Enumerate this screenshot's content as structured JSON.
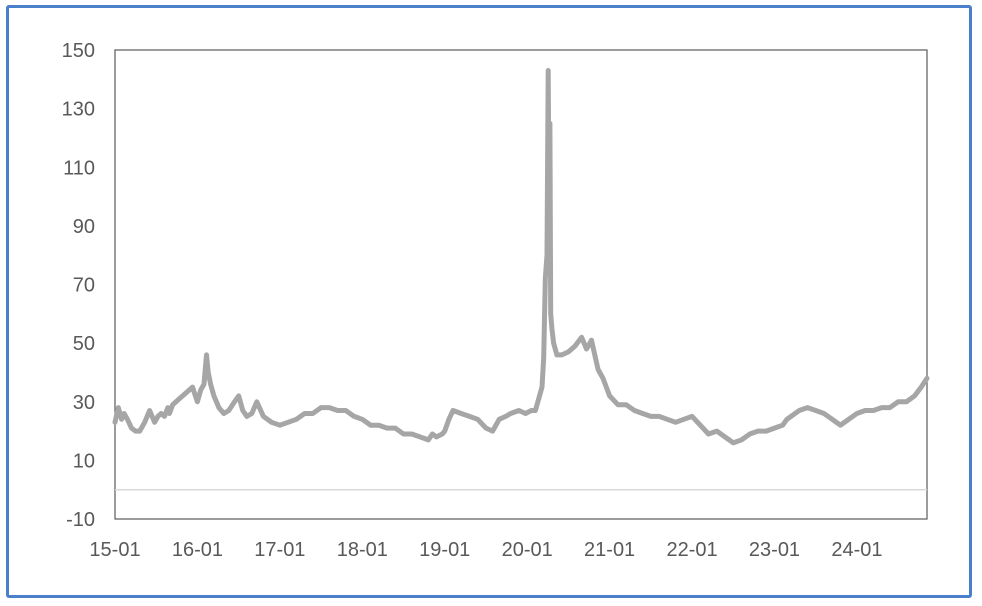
{
  "chart_data": {
    "type": "line",
    "title": "",
    "xlabel": "",
    "ylabel": "",
    "ylim": [
      -10,
      150
    ],
    "yticks": [
      -10,
      10,
      30,
      50,
      70,
      90,
      110,
      130,
      150
    ],
    "xlim": [
      2015.0,
      2024.85
    ],
    "xticks": [
      {
        "label": "15-01",
        "x": 2015.0
      },
      {
        "label": "16-01",
        "x": 2016.0
      },
      {
        "label": "17-01",
        "x": 2017.0
      },
      {
        "label": "18-01",
        "x": 2018.0
      },
      {
        "label": "19-01",
        "x": 2019.0
      },
      {
        "label": "20-01",
        "x": 2020.0
      },
      {
        "label": "21-01",
        "x": 2021.0
      },
      {
        "label": "22-01",
        "x": 2022.0
      },
      {
        "label": "23-01",
        "x": 2023.0
      },
      {
        "label": "24-01",
        "x": 2024.0
      }
    ],
    "grid": false,
    "legend": "none",
    "reference_line": 0,
    "colors": {
      "line": "#a6a6a6",
      "axis": "#595959",
      "zero_line": "#d9d9d9",
      "frame": "#4a7fcb"
    },
    "series": [
      {
        "x": [
          2015.0,
          2015.04,
          2015.08,
          2015.11,
          2015.15,
          2015.2,
          2015.25,
          2015.3,
          2015.36,
          2015.42,
          2015.48,
          2015.52,
          2015.56,
          2015.6,
          2015.64,
          2015.66,
          2015.7,
          2015.78,
          2015.86,
          2015.94,
          2016.0,
          2016.04,
          2016.08,
          2016.11,
          2016.13,
          2016.16,
          2016.2,
          2016.26,
          2016.32,
          2016.38,
          2016.45,
          2016.5,
          2016.55,
          2016.6,
          2016.66,
          2016.72,
          2016.8,
          2016.9,
          2017.0,
          2017.1,
          2017.2,
          2017.3,
          2017.4,
          2017.5,
          2017.6,
          2017.7,
          2017.8,
          2017.9,
          2018.0,
          2018.1,
          2018.2,
          2018.3,
          2018.4,
          2018.5,
          2018.6,
          2018.7,
          2018.8,
          2018.85,
          2018.9,
          2018.97,
          2019.0,
          2019.05,
          2019.1,
          2019.2,
          2019.3,
          2019.4,
          2019.5,
          2019.58,
          2019.66,
          2019.74,
          2019.8,
          2019.9,
          2019.98,
          2020.05,
          2020.1,
          2020.14,
          2020.18,
          2020.2,
          2020.22,
          2020.24,
          2020.255,
          2020.265,
          2020.275,
          2020.285,
          2020.3,
          2020.32,
          2020.36,
          2020.42,
          2020.5,
          2020.58,
          2020.66,
          2020.72,
          2020.78,
          2020.82,
          2020.86,
          2020.92,
          2021.0,
          2021.1,
          2021.2,
          2021.3,
          2021.4,
          2021.5,
          2021.6,
          2021.7,
          2021.8,
          2021.9,
          2022.0,
          2022.1,
          2022.2,
          2022.3,
          2022.4,
          2022.5,
          2022.6,
          2022.7,
          2022.8,
          2022.9,
          2023.0,
          2023.1,
          2023.15,
          2023.2,
          2023.3,
          2023.4,
          2023.5,
          2023.6,
          2023.7,
          2023.8,
          2023.9,
          2024.0,
          2024.1,
          2024.2,
          2024.3,
          2024.4,
          2024.5,
          2024.6,
          2024.7,
          2024.78,
          2024.85
        ],
        "values": [
          23,
          28,
          24,
          26,
          24,
          21,
          20,
          20,
          23,
          27,
          23,
          25,
          26,
          25,
          28,
          26,
          29,
          31,
          33,
          35,
          30,
          34,
          36,
          46,
          40,
          36,
          32,
          28,
          26,
          27,
          30,
          32,
          27,
          25,
          26,
          30,
          25,
          23,
          22,
          23,
          24,
          26,
          26,
          28,
          28,
          27,
          27,
          25,
          24,
          22,
          22,
          21,
          21,
          19,
          19,
          18,
          17,
          19,
          18,
          19,
          20,
          24,
          27,
          26,
          25,
          24,
          21,
          20,
          24,
          25,
          26,
          27,
          26,
          27,
          27,
          31,
          35,
          45,
          72,
          80,
          143,
          100,
          125,
          60,
          55,
          50,
          46,
          46,
          47,
          49,
          52,
          48,
          51,
          46,
          41,
          38,
          32,
          29,
          29,
          27,
          26,
          25,
          25,
          24,
          23,
          24,
          25,
          22,
          19,
          20,
          18,
          16,
          17,
          19,
          20,
          20,
          21,
          22,
          24,
          25,
          27,
          28,
          27,
          26,
          24,
          22,
          24,
          26,
          27,
          27,
          28,
          28,
          30,
          30,
          32,
          35,
          38
        ]
      }
    ]
  }
}
